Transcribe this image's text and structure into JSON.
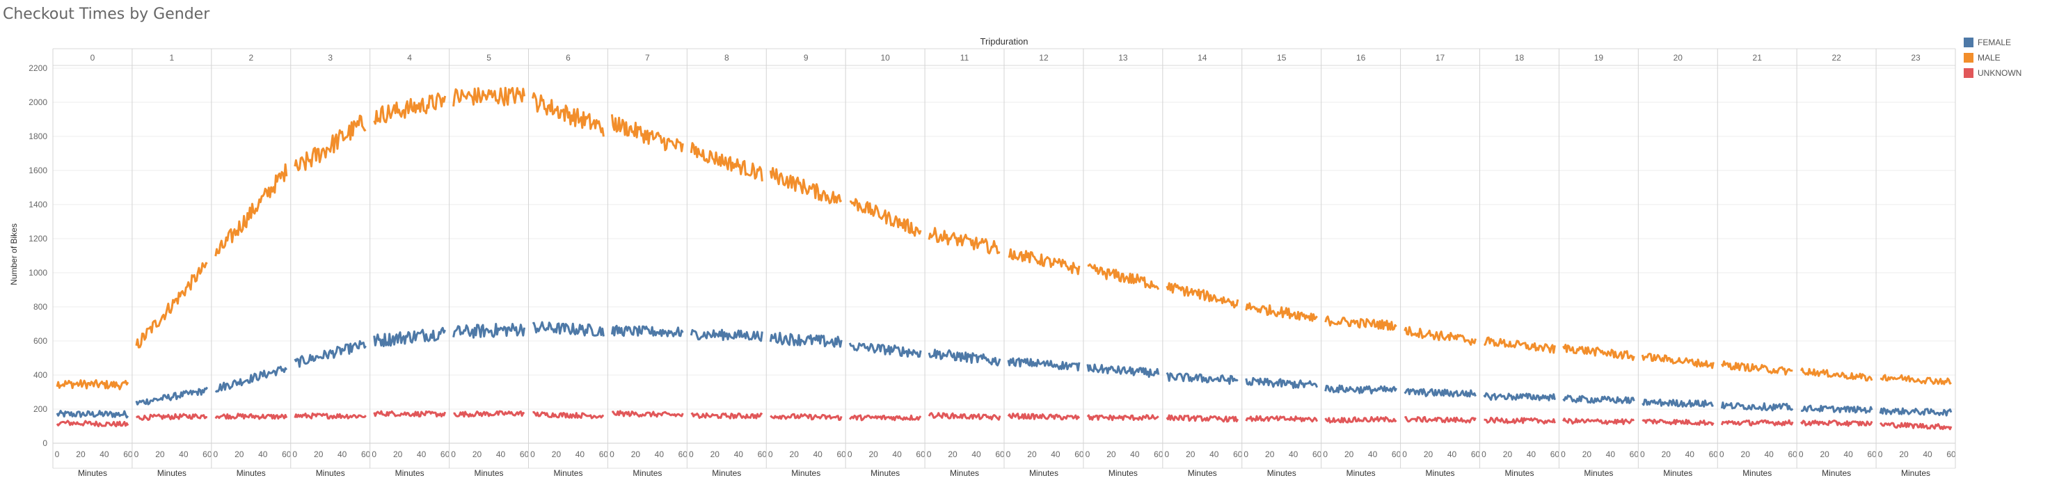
{
  "title": "Checkout Times by Gender",
  "chart_data": {
    "type": "line",
    "title": "Checkout Times by Gender",
    "column_header": "Tripduration",
    "panels": [
      "0",
      "1",
      "2",
      "3",
      "4",
      "5",
      "6",
      "7",
      "8",
      "9",
      "10",
      "11",
      "12",
      "13",
      "14",
      "15",
      "16",
      "17",
      "18",
      "19",
      "20",
      "21",
      "22",
      "23"
    ],
    "xlabel": "Minutes",
    "ylabel": "Number of Bikes",
    "ylim": [
      0,
      2200
    ],
    "y_ticks": [
      0,
      200,
      400,
      600,
      800,
      1000,
      1200,
      1400,
      1600,
      1800,
      2000,
      2200
    ],
    "x_ticks": [
      0,
      20,
      40,
      60
    ],
    "xlim": [
      0,
      60
    ],
    "grid": true,
    "legend": "right",
    "series": [
      {
        "name": "FEMALE",
        "color": "#4e79a7",
        "start": [
          170,
          235,
          320,
          470,
          600,
          650,
          680,
          660,
          640,
          620,
          570,
          530,
          480,
          440,
          390,
          360,
          320,
          300,
          275,
          260,
          240,
          220,
          205,
          190
        ],
        "end": [
          170,
          310,
          440,
          580,
          650,
          670,
          660,
          650,
          630,
          590,
          530,
          480,
          450,
          410,
          370,
          340,
          310,
          290,
          270,
          250,
          230,
          210,
          195,
          180
        ],
        "noise": [
          20,
          20,
          25,
          30,
          40,
          40,
          35,
          30,
          30,
          35,
          30,
          30,
          25,
          25,
          25,
          25,
          22,
          22,
          20,
          20,
          20,
          20,
          18,
          18
        ]
      },
      {
        "name": "MALE",
        "color": "#f28e2b",
        "start": [
          350,
          570,
          1100,
          1600,
          1920,
          2030,
          2010,
          1880,
          1720,
          1580,
          1420,
          1230,
          1120,
          1020,
          920,
          800,
          720,
          660,
          600,
          560,
          510,
          460,
          425,
          390
        ],
        "end": [
          340,
          1050,
          1600,
          1890,
          2010,
          2040,
          1850,
          1730,
          1580,
          1420,
          1240,
          1140,
          1020,
          930,
          820,
          740,
          690,
          600,
          550,
          510,
          460,
          420,
          380,
          360
        ],
        "noise": [
          25,
          40,
          50,
          60,
          55,
          55,
          55,
          50,
          45,
          45,
          40,
          40,
          35,
          35,
          30,
          30,
          28,
          28,
          25,
          25,
          22,
          22,
          20,
          20
        ]
      },
      {
        "name": "UNKNOWN",
        "color": "#e15759",
        "start": [
          120,
          150,
          160,
          160,
          175,
          170,
          170,
          175,
          160,
          160,
          150,
          165,
          160,
          150,
          150,
          145,
          135,
          140,
          135,
          130,
          130,
          120,
          120,
          110
        ],
        "end": [
          110,
          160,
          155,
          160,
          170,
          175,
          160,
          165,
          160,
          150,
          150,
          150,
          150,
          150,
          140,
          140,
          140,
          135,
          130,
          125,
          120,
          120,
          115,
          95
        ],
        "noise": [
          15,
          15,
          15,
          15,
          15,
          15,
          15,
          15,
          15,
          15,
          15,
          15,
          15,
          15,
          15,
          15,
          15,
          15,
          15,
          15,
          15,
          15,
          15,
          15
        ]
      }
    ]
  }
}
